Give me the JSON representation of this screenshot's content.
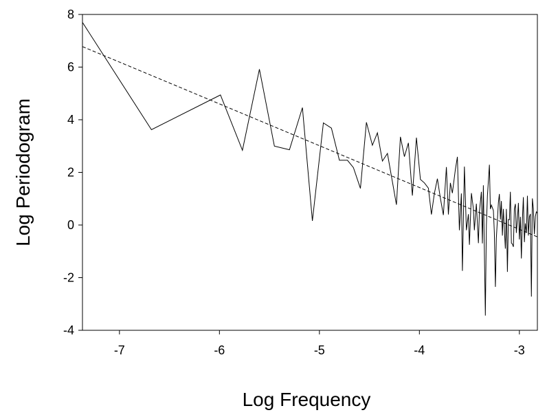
{
  "chart_data": {
    "type": "line",
    "title": "",
    "xlabel": "Log Frequency",
    "ylabel": "Log Periodogram",
    "xlim": [
      -7.37,
      -2.82
    ],
    "ylim": [
      -4,
      8
    ],
    "xticks": [
      -7,
      -6,
      -5,
      -4,
      -3
    ],
    "yticks": [
      -4,
      -2,
      0,
      2,
      4,
      6,
      8
    ],
    "grid": false,
    "legend": "none",
    "series": [
      {
        "style": "solid",
        "color": "#000000",
        "points": [
          [
            -7.37,
            7.7
          ],
          [
            -6.68,
            3.62
          ],
          [
            -5.99,
            4.94
          ],
          [
            -5.77,
            2.84
          ],
          [
            -5.6,
            5.92
          ],
          [
            -5.45,
            3.0
          ],
          [
            -5.3,
            2.86
          ],
          [
            -5.17,
            4.46
          ],
          [
            -5.07,
            0.16
          ],
          [
            -4.96,
            3.88
          ],
          [
            -4.88,
            3.68
          ],
          [
            -4.8,
            2.46
          ],
          [
            -4.72,
            2.46
          ],
          [
            -4.66,
            2.18
          ],
          [
            -4.59,
            1.39
          ],
          [
            -4.53,
            3.9
          ],
          [
            -4.47,
            3.03
          ],
          [
            -4.42,
            3.5
          ],
          [
            -4.37,
            2.43
          ],
          [
            -4.32,
            2.72
          ],
          [
            -4.23,
            0.77
          ],
          [
            -4.19,
            3.35
          ],
          [
            -4.15,
            2.6
          ],
          [
            -4.11,
            3.12
          ],
          [
            -4.07,
            1.12
          ],
          [
            -4.03,
            3.32
          ],
          [
            -3.99,
            1.73
          ],
          [
            -3.95,
            1.6
          ],
          [
            -3.91,
            1.4
          ],
          [
            -3.88,
            0.4
          ],
          [
            -3.85,
            1.2
          ],
          [
            -3.82,
            1.76
          ],
          [
            -3.79,
            1.01
          ],
          [
            -3.76,
            0.38
          ],
          [
            -3.73,
            2.2
          ],
          [
            -3.71,
            0.4
          ],
          [
            -3.69,
            1.6
          ],
          [
            -3.67,
            1.21
          ],
          [
            -3.64,
            2.12
          ],
          [
            -3.62,
            2.59
          ],
          [
            -3.6,
            -0.2
          ],
          [
            -3.58,
            1.2
          ],
          [
            -3.57,
            -1.74
          ],
          [
            -3.55,
            2.22
          ],
          [
            -3.53,
            -0.2
          ],
          [
            -3.51,
            0.41
          ],
          [
            -3.5,
            -0.75
          ],
          [
            -3.48,
            1.21
          ],
          [
            -3.46,
            0.61
          ],
          [
            -3.45,
            -0.2
          ],
          [
            -3.43,
            0.81
          ],
          [
            -3.41,
            -0.69
          ],
          [
            -3.4,
            0.5
          ],
          [
            -3.38,
            1.26
          ],
          [
            -3.37,
            -0.7
          ],
          [
            -3.36,
            1.51
          ],
          [
            -3.34,
            -3.44
          ],
          [
            -3.33,
            0.0
          ],
          [
            -3.32,
            1.11
          ],
          [
            -3.3,
            2.29
          ],
          [
            -3.29,
            0.61
          ],
          [
            -3.28,
            0.76
          ],
          [
            -3.26,
            0.55
          ],
          [
            -3.25,
            -0.3
          ],
          [
            -3.24,
            -2.35
          ],
          [
            -3.23,
            -0.5
          ],
          [
            -3.21,
            0.86
          ],
          [
            -3.2,
            1.18
          ],
          [
            -3.19,
            0.21
          ],
          [
            -3.18,
            0.91
          ],
          [
            -3.17,
            -0.4
          ],
          [
            -3.16,
            0.61
          ],
          [
            -3.14,
            -0.9
          ],
          [
            -3.13,
            0.61
          ],
          [
            -3.12,
            -1.78
          ],
          [
            -3.11,
            0.21
          ],
          [
            -3.1,
            0.2
          ],
          [
            -3.09,
            1.26
          ],
          [
            -3.08,
            -0.69
          ],
          [
            -3.07,
            -0.72
          ],
          [
            -3.06,
            -0.83
          ],
          [
            -3.05,
            0.61
          ],
          [
            -3.04,
            0.8
          ],
          [
            -3.03,
            -0.3
          ],
          [
            -3.02,
            0.21
          ],
          [
            -3.01,
            0.84
          ],
          [
            -3.0,
            -0.55
          ],
          [
            -2.99,
            0.31
          ],
          [
            -2.98,
            -1.27
          ],
          [
            -2.97,
            0.21
          ],
          [
            -2.96,
            1.06
          ],
          [
            -2.95,
            -0.65
          ],
          [
            -2.94,
            0.06
          ],
          [
            -2.93,
            -0.3
          ],
          [
            -2.92,
            1.11
          ],
          [
            -2.91,
            -0.4
          ],
          [
            -2.9,
            0.31
          ],
          [
            -2.89,
            0.42
          ],
          [
            -2.88,
            -2.72
          ],
          [
            -2.87,
            1.01
          ],
          [
            -2.86,
            0.61
          ],
          [
            -2.85,
            -0.35
          ],
          [
            -2.84,
            0.33
          ],
          [
            -2.83,
            0.5
          ],
          [
            -2.82,
            0.45
          ]
        ]
      },
      {
        "style": "dashed",
        "color": "#000000",
        "points": [
          [
            -7.37,
            6.78
          ],
          [
            -2.82,
            -0.45
          ]
        ]
      }
    ]
  }
}
